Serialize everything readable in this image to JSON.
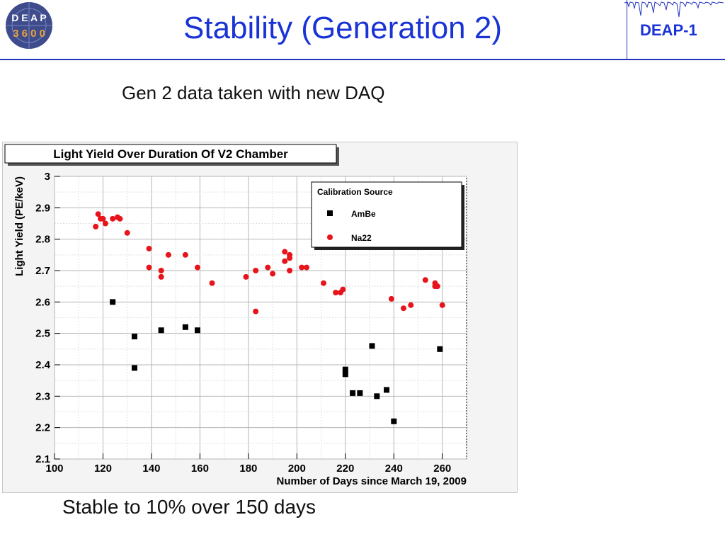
{
  "slide": {
    "title": "Stability (Generation 2)",
    "subtitle": "Gen 2 data taken with new DAQ",
    "footer": "Stable to 10% over 150 days",
    "right_label": "DEAP-1",
    "logo_text_top": "D E A P",
    "logo_text_bottom": "3 6 0 0",
    "colors": {
      "title": "#1a33d6",
      "rule": "#2336b8"
    }
  },
  "chart_data": {
    "type": "scatter",
    "title": "Light Yield Over Duration Of V2 Chamber",
    "xlabel": "Number of Days since March 19, 2009",
    "ylabel": "Light Yield (PE/keV)",
    "xlim": [
      100,
      270
    ],
    "ylim": [
      2.1,
      3.0
    ],
    "xticks": [
      100,
      120,
      140,
      160,
      180,
      200,
      220,
      240,
      260
    ],
    "yticks": [
      2.1,
      2.2,
      2.3,
      2.4,
      2.5,
      2.6,
      2.7,
      2.8,
      2.9,
      3
    ],
    "xtick_labels": [
      "100",
      "120",
      "140",
      "160",
      "180",
      "200",
      "220",
      "240",
      "260"
    ],
    "ytick_labels": [
      "2.1",
      "2.2",
      "2.3",
      "2.4",
      "2.5",
      "2.6",
      "2.7",
      "2.8",
      "2.9",
      "3"
    ],
    "grid": true,
    "legend": {
      "title": "Calibration Source",
      "position": "top-right"
    },
    "series": [
      {
        "name": "AmBe",
        "marker": "square",
        "color": "#000000",
        "points": [
          [
            124,
            2.6
          ],
          [
            133,
            2.49
          ],
          [
            133,
            2.39
          ],
          [
            144,
            2.51
          ],
          [
            154,
            2.52
          ],
          [
            159,
            2.51
          ],
          [
            220,
            2.385
          ],
          [
            220,
            2.37
          ],
          [
            223,
            2.31
          ],
          [
            226,
            2.31
          ],
          [
            231,
            2.46
          ],
          [
            233,
            2.3
          ],
          [
            237,
            2.32
          ],
          [
            240,
            2.22
          ],
          [
            259,
            2.45
          ]
        ]
      },
      {
        "name": "Na22",
        "marker": "circle",
        "color": "#e8141b",
        "points": [
          [
            117,
            2.84
          ],
          [
            118,
            2.88
          ],
          [
            119,
            2.865
          ],
          [
            120,
            2.865
          ],
          [
            121,
            2.85
          ],
          [
            124,
            2.865
          ],
          [
            126,
            2.87
          ],
          [
            127,
            2.865
          ],
          [
            130,
            2.82
          ],
          [
            139,
            2.77
          ],
          [
            139,
            2.71
          ],
          [
            144,
            2.7
          ],
          [
            144,
            2.68
          ],
          [
            147,
            2.75
          ],
          [
            154,
            2.75
          ],
          [
            159,
            2.71
          ],
          [
            165,
            2.66
          ],
          [
            179,
            2.68
          ],
          [
            183,
            2.7
          ],
          [
            183,
            2.57
          ],
          [
            188,
            2.71
          ],
          [
            190,
            2.69
          ],
          [
            195,
            2.76
          ],
          [
            195,
            2.73
          ],
          [
            197,
            2.75
          ],
          [
            197,
            2.74
          ],
          [
            197,
            2.7
          ],
          [
            202,
            2.71
          ],
          [
            204,
            2.71
          ],
          [
            211,
            2.66
          ],
          [
            216,
            2.63
          ],
          [
            218,
            2.63
          ],
          [
            219,
            2.64
          ],
          [
            239,
            2.61
          ],
          [
            244,
            2.58
          ],
          [
            247,
            2.59
          ],
          [
            253,
            2.67
          ],
          [
            257,
            2.66
          ],
          [
            257,
            2.65
          ],
          [
            258,
            2.65
          ],
          [
            260,
            2.59
          ]
        ]
      }
    ]
  }
}
